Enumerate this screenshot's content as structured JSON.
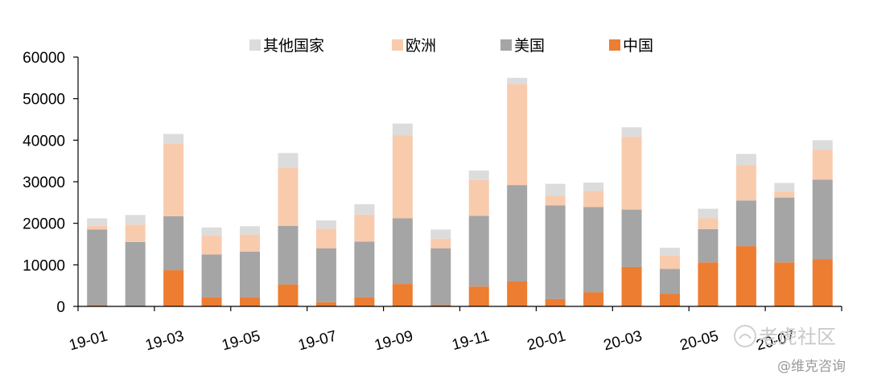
{
  "chart_data": {
    "type": "bar",
    "stacked": true,
    "title": "",
    "xlabel": "",
    "ylabel": "",
    "ylim": [
      0,
      60000
    ],
    "yticks": [
      0,
      10000,
      20000,
      30000,
      40000,
      50000,
      60000
    ],
    "categories": [
      "19-01",
      "19-02",
      "19-03",
      "19-04",
      "19-05",
      "19-06",
      "19-07",
      "19-08",
      "19-09",
      "19-10",
      "19-11",
      "19-12",
      "20-01",
      "20-02",
      "20-03",
      "20-04",
      "20-05",
      "20-06",
      "20-07",
      "20-08"
    ],
    "tick_labels": [
      "19-01",
      "19-03",
      "19-05",
      "19-07",
      "19-09",
      "19-11",
      "20-01",
      "20-03",
      "20-05",
      "20-07"
    ],
    "legend_position": "top",
    "series": [
      {
        "name": "中国",
        "color": "#ed7d31",
        "values": [
          300,
          0,
          8700,
          2200,
          2200,
          5300,
          1000,
          2200,
          5400,
          400,
          4800,
          6000,
          1800,
          3400,
          9500,
          3000,
          10600,
          14500,
          10600,
          11400
        ]
      },
      {
        "name": "美国",
        "color": "#a5a5a5",
        "values": [
          18200,
          15500,
          13000,
          10300,
          11000,
          14100,
          13000,
          13400,
          15800,
          13600,
          17000,
          23200,
          22500,
          20500,
          13800,
          6000,
          8000,
          11000,
          15600,
          19100
        ]
      },
      {
        "name": "欧洲",
        "color": "#f8cbad",
        "values": [
          900,
          4200,
          17400,
          4600,
          4100,
          14000,
          4700,
          6500,
          20000,
          2300,
          8600,
          24300,
          2300,
          3900,
          17500,
          3200,
          2600,
          8500,
          1400,
          7200
        ]
      },
      {
        "name": "其他国家",
        "color": "#dcdcdc",
        "values": [
          1800,
          2300,
          2400,
          1900,
          2000,
          3500,
          2000,
          2500,
          2800,
          2200,
          2300,
          1500,
          2900,
          2000,
          2300,
          1900,
          2300,
          2700,
          2100,
          2300
        ]
      }
    ]
  },
  "legend_order": [
    "其他国家",
    "欧洲",
    "美国",
    "中国"
  ],
  "watermark": {
    "main": "老虎社区",
    "sub": "@维克咨询"
  }
}
